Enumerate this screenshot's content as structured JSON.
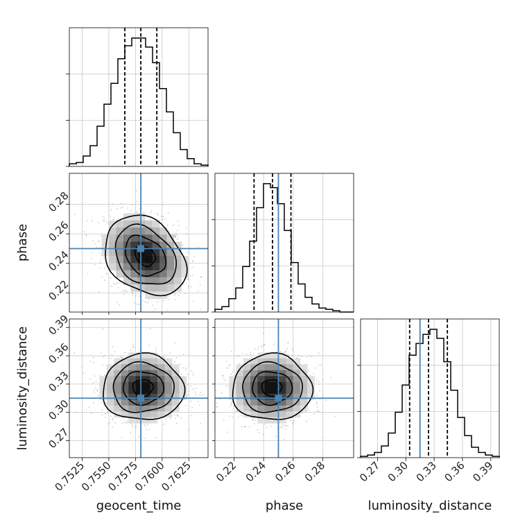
{
  "chart_data": {
    "type": "corner",
    "parameters": [
      "geocent_time",
      "phase",
      "luminosity_distance"
    ],
    "truths": {
      "geocent_time": 0.758,
      "phase": 0.25,
      "luminosity_distance": 0.315
    },
    "truth_color": "#4682b4",
    "ranges": {
      "geocent_time": [
        0.7513,
        0.7643
      ],
      "phase": [
        0.207,
        0.301
      ],
      "luminosity_distance": [
        0.252,
        0.399
      ]
    },
    "ticks": {
      "geocent_time": {
        "values": [
          0.7525,
          0.755,
          0.7575,
          0.76,
          0.7625
        ],
        "labels": [
          "0.7525",
          "0.7550",
          "0.7575",
          "0.7600",
          "0.7625"
        ]
      },
      "phase": {
        "values": [
          0.22,
          0.24,
          0.26,
          0.28
        ],
        "labels": [
          "0.22",
          "0.24",
          "0.26",
          "0.28"
        ]
      },
      "luminosity_distance": {
        "values": [
          0.27,
          0.3,
          0.33,
          0.36,
          0.39
        ],
        "labels": [
          "0.27",
          "0.30",
          "0.33",
          "0.36",
          "0.39"
        ]
      }
    },
    "quantiles": {
      "geocent_time": [
        0.7565,
        0.758,
        0.7595
      ],
      "phase": [
        0.2335,
        0.246,
        0.2585
      ],
      "luminosity_distance": [
        0.304,
        0.324,
        0.344
      ]
    },
    "histograms": {
      "geocent_time": {
        "bin_edges": [
          0.7513,
          0.75195,
          0.7526,
          0.75325,
          0.7539,
          0.75455,
          0.7552,
          0.75585,
          0.7565,
          0.75715,
          0.7578,
          0.75845,
          0.7591,
          0.75975,
          0.7604,
          0.76105,
          0.7617,
          0.76235,
          0.763,
          0.76365,
          0.7643
        ],
        "counts": [
          2,
          3,
          8,
          16,
          31,
          48,
          64,
          83,
          93,
          99,
          99,
          92,
          80,
          60,
          42,
          26,
          13,
          6,
          2,
          1
        ]
      },
      "phase": {
        "bin_edges": [
          0.207,
          0.2117,
          0.2164,
          0.2211,
          0.2258,
          0.2305,
          0.2352,
          0.2399,
          0.2446,
          0.2493,
          0.254,
          0.2587,
          0.2634,
          0.2681,
          0.2728,
          0.2775,
          0.2822,
          0.2869,
          0.2916,
          0.2963,
          0.301
        ],
        "counts": [
          2,
          4,
          10,
          18,
          34,
          53,
          78,
          96,
          93,
          81,
          61,
          37,
          21,
          11,
          6,
          3,
          2,
          1,
          0,
          0
        ]
      },
      "luminosity_distance": {
        "bin_edges": [
          0.252,
          0.25935,
          0.2667,
          0.27405,
          0.2814,
          0.28875,
          0.2961,
          0.30345,
          0.3108,
          0.31815,
          0.3255,
          0.33285,
          0.3402,
          0.34755,
          0.3549,
          0.36225,
          0.3696,
          0.37695,
          0.3843,
          0.39165,
          0.399
        ],
        "counts": [
          1,
          2,
          4,
          9,
          19,
          35,
          56,
          79,
          88,
          95,
          99,
          92,
          74,
          52,
          31,
          17,
          8,
          4,
          2,
          1
        ]
      }
    },
    "scatter_2d": {
      "phase_vs_geocent_time": {
        "mean": [
          0.7584,
          0.245
        ],
        "std": [
          0.0019,
          0.0135
        ],
        "correlation": -0.28
      },
      "luminosity_distance_vs_geocent_time": {
        "mean": [
          0.7582,
          0.326
        ],
        "std": [
          0.0019,
          0.0175
        ],
        "correlation": 0.0
      },
      "luminosity_distance_vs_phase": {
        "mean": [
          0.2455,
          0.326
        ],
        "std": [
          0.0135,
          0.0175
        ],
        "correlation": 0.0
      }
    },
    "contour_levels_sigma": [
      0.5,
      1.0,
      1.5,
      2.0
    ],
    "grid": true
  }
}
